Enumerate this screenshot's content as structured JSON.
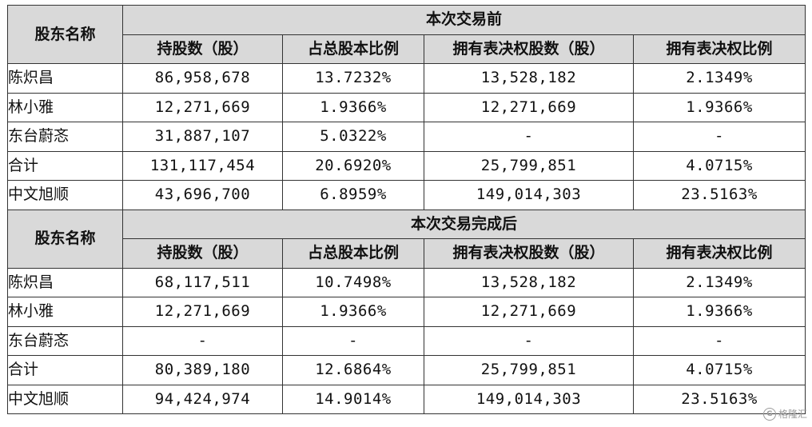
{
  "before": {
    "shareholder_header": "股东名称",
    "section_title": "本次交易前",
    "columns": [
      "持股数（股）",
      "占总股本比例",
      "拥有表决权股数（股）",
      "拥有表决权比例"
    ],
    "rows": [
      {
        "name": "陈炽昌",
        "shares": "86,958,678",
        "pct": "13.7232%",
        "voting_shares": "13,528,182",
        "voting_pct": "2.1349%"
      },
      {
        "name": "林小雅",
        "shares": "12,271,669",
        "pct": "1.9366%",
        "voting_shares": "12,271,669",
        "voting_pct": "1.9366%"
      },
      {
        "name": "东台蔚忞",
        "shares": "31,887,107",
        "pct": "5.0322%",
        "voting_shares": "-",
        "voting_pct": "-"
      },
      {
        "name": "合计",
        "shares": "131,117,454",
        "pct": "20.6920%",
        "voting_shares": "25,799,851",
        "voting_pct": "4.0715%"
      },
      {
        "name": "中文旭顺",
        "shares": "43,696,700",
        "pct": "6.8959%",
        "voting_shares": "149,014,303",
        "voting_pct": "23.5163%"
      }
    ]
  },
  "after": {
    "shareholder_header": "股东名称",
    "section_title": "本次交易完成后",
    "columns": [
      "持股数（股）",
      "占总股本比例",
      "拥有表决权股数（股）",
      "拥有表决权比例"
    ],
    "rows": [
      {
        "name": "陈炽昌",
        "shares": "68,117,511",
        "pct": "10.7498%",
        "voting_shares": "13,528,182",
        "voting_pct": "2.1349%"
      },
      {
        "name": "林小雅",
        "shares": "12,271,669",
        "pct": "1.9366%",
        "voting_shares": "12,271,669",
        "voting_pct": "1.9366%"
      },
      {
        "name": "东台蔚忞",
        "shares": "-",
        "pct": "-",
        "voting_shares": "-",
        "voting_pct": "-"
      },
      {
        "name": "合计",
        "shares": "80,389,180",
        "pct": "12.6864%",
        "voting_shares": "25,799,851",
        "voting_pct": "4.0715%"
      },
      {
        "name": "中文旭顺",
        "shares": "94,424,974",
        "pct": "14.9014%",
        "voting_shares": "149,014,303",
        "voting_pct": "23.5163%"
      }
    ]
  },
  "watermark": {
    "icon": "gelonghui-logo-icon",
    "text": "格隆汇"
  }
}
